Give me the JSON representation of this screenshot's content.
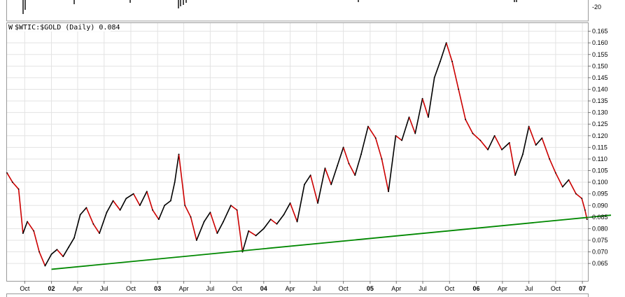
{
  "upper_panel": {
    "tick_label": "-20"
  },
  "chart_data": {
    "type": "line",
    "title": "$WTIC:$GOLD (Daily) 0.084",
    "legend_icon": "W",
    "ylim": [
      0.0575,
      0.1685
    ],
    "y_ticks": [
      0.065,
      0.07,
      0.075,
      0.08,
      0.085,
      0.09,
      0.095,
      0.1,
      0.105,
      0.11,
      0.115,
      0.12,
      0.125,
      0.13,
      0.135,
      0.14,
      0.145,
      0.15,
      0.155,
      0.16,
      0.165
    ],
    "y_tick_labels": [
      "0.065",
      "0.070",
      "0.075",
      "0.080",
      "0.085",
      "0.090",
      "0.095",
      "0.100",
      "0.105",
      "0.110",
      "0.115",
      "0.120",
      "0.125",
      "0.130",
      "0.135",
      "0.140",
      "0.145",
      "0.150",
      "0.155",
      "0.160",
      "0.165"
    ],
    "x_ticks": [
      {
        "label": "Oct",
        "date": "2001-10-01",
        "bold": false
      },
      {
        "label": "02",
        "date": "2002-01-01",
        "bold": true
      },
      {
        "label": "Apr",
        "date": "2002-04-01",
        "bold": false
      },
      {
        "label": "Jul",
        "date": "2002-07-01",
        "bold": false
      },
      {
        "label": "Oct",
        "date": "2002-10-01",
        "bold": false
      },
      {
        "label": "03",
        "date": "2003-01-01",
        "bold": true
      },
      {
        "label": "Apr",
        "date": "2003-04-01",
        "bold": false
      },
      {
        "label": "Jul",
        "date": "2003-07-01",
        "bold": false
      },
      {
        "label": "Oct",
        "date": "2003-10-01",
        "bold": false
      },
      {
        "label": "04",
        "date": "2004-01-01",
        "bold": true
      },
      {
        "label": "Apr",
        "date": "2004-04-01",
        "bold": false
      },
      {
        "label": "Jul",
        "date": "2004-07-01",
        "bold": false
      },
      {
        "label": "Oct",
        "date": "2004-10-01",
        "bold": false
      },
      {
        "label": "05",
        "date": "2005-01-01",
        "bold": true
      },
      {
        "label": "Apr",
        "date": "2005-04-01",
        "bold": false
      },
      {
        "label": "Jul",
        "date": "2005-07-01",
        "bold": false
      },
      {
        "label": "Oct",
        "date": "2005-10-01",
        "bold": false
      },
      {
        "label": "06",
        "date": "2006-01-01",
        "bold": true
      },
      {
        "label": "Apr",
        "date": "2006-04-01",
        "bold": false
      },
      {
        "label": "Jul",
        "date": "2006-07-01",
        "bold": false
      },
      {
        "label": "Oct",
        "date": "2006-10-01",
        "bold": false
      },
      {
        "label": "07",
        "date": "2007-01-01",
        "bold": true
      }
    ],
    "xlim": [
      "2001-08-01",
      "2007-01-20"
    ],
    "grid": true,
    "series": [
      {
        "color": "#000000",
        "up_color": "#000000",
        "down_color": "#cc0000",
        "x": [
          "2001-08-01",
          "2001-08-20",
          "2001-09-10",
          "2001-09-25",
          "2001-10-10",
          "2001-11-01",
          "2001-11-20",
          "2001-12-10",
          "2002-01-01",
          "2002-01-20",
          "2002-02-10",
          "2002-03-01",
          "2002-03-20",
          "2002-04-10",
          "2002-05-01",
          "2002-05-25",
          "2002-06-15",
          "2002-07-10",
          "2002-08-01",
          "2002-08-25",
          "2002-09-15",
          "2002-10-10",
          "2002-11-01",
          "2002-11-25",
          "2002-12-15",
          "2003-01-05",
          "2003-01-25",
          "2003-02-15",
          "2003-03-01",
          "2003-03-15",
          "2003-04-05",
          "2003-04-25",
          "2003-05-15",
          "2003-06-10",
          "2003-07-01",
          "2003-07-25",
          "2003-08-15",
          "2003-09-10",
          "2003-10-01",
          "2003-10-20",
          "2003-11-10",
          "2003-12-05",
          "2004-01-01",
          "2004-01-25",
          "2004-02-15",
          "2004-03-10",
          "2004-04-01",
          "2004-04-25",
          "2004-05-20",
          "2004-06-10",
          "2004-07-05",
          "2004-07-30",
          "2004-08-20",
          "2004-09-10",
          "2004-10-01",
          "2004-10-20",
          "2004-11-10",
          "2004-12-01",
          "2004-12-25",
          "2005-01-20",
          "2005-02-10",
          "2005-03-05",
          "2005-03-30",
          "2005-04-20",
          "2005-05-15",
          "2005-06-05",
          "2005-06-30",
          "2005-07-20",
          "2005-08-10",
          "2005-08-30",
          "2005-09-20",
          "2005-10-10",
          "2005-11-01",
          "2005-11-25",
          "2005-12-20",
          "2006-01-15",
          "2006-02-10",
          "2006-03-05",
          "2006-03-30",
          "2006-04-25",
          "2006-05-15",
          "2006-06-10",
          "2006-07-01",
          "2006-07-25",
          "2006-08-15",
          "2006-09-10",
          "2006-10-01",
          "2006-10-25",
          "2006-11-15",
          "2006-12-10",
          "2006-12-30",
          "2007-01-10",
          "2007-01-17"
        ],
        "values": [
          0.104,
          0.1,
          0.097,
          0.078,
          0.083,
          0.079,
          0.07,
          0.064,
          0.069,
          0.071,
          0.068,
          0.072,
          0.076,
          0.086,
          0.089,
          0.082,
          0.078,
          0.087,
          0.092,
          0.088,
          0.093,
          0.095,
          0.09,
          0.096,
          0.088,
          0.084,
          0.09,
          0.092,
          0.1,
          0.112,
          0.09,
          0.085,
          0.075,
          0.083,
          0.087,
          0.078,
          0.083,
          0.09,
          0.088,
          0.07,
          0.079,
          0.077,
          0.08,
          0.084,
          0.082,
          0.086,
          0.091,
          0.083,
          0.099,
          0.103,
          0.091,
          0.106,
          0.099,
          0.107,
          0.115,
          0.108,
          0.103,
          0.112,
          0.124,
          0.119,
          0.11,
          0.096,
          0.12,
          0.118,
          0.128,
          0.121,
          0.136,
          0.128,
          0.145,
          0.152,
          0.16,
          0.152,
          0.14,
          0.127,
          0.121,
          0.118,
          0.114,
          0.12,
          0.114,
          0.117,
          0.103,
          0.112,
          0.124,
          0.116,
          0.119,
          0.11,
          0.104,
          0.098,
          0.101,
          0.095,
          0.093,
          0.088,
          0.084
        ]
      }
    ],
    "trendline": {
      "color": "#008800",
      "x": [
        "2002-01-01",
        "2007-01-20"
      ],
      "values": [
        0.0625,
        0.0855
      ]
    }
  }
}
